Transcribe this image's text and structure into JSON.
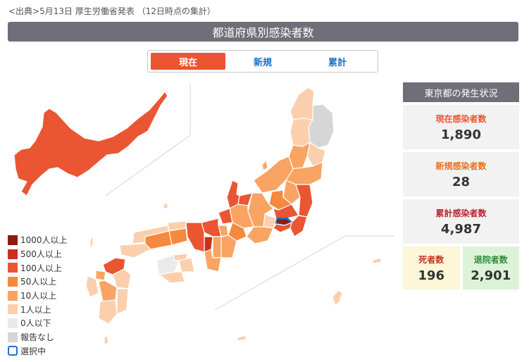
{
  "source_note": "<出典>5月13日 厚生労働省発表 （12日時点の集計）",
  "title": "都道府県別感染者数",
  "tabs": [
    {
      "label": "現在",
      "active": true
    },
    {
      "label": "新規",
      "active": false
    },
    {
      "label": "累計",
      "active": false
    }
  ],
  "legend": [
    {
      "label": "1000人以上",
      "color": "#8e1b10"
    },
    {
      "label": "500人以上",
      "color": "#c8321d"
    },
    {
      "label": "100人以上",
      "color": "#ea5532"
    },
    {
      "label": "50人以上",
      "color": "#f5893e"
    },
    {
      "label": "10人以上",
      "color": "#f9a462"
    },
    {
      "label": "1人以上",
      "color": "#fbcfae"
    },
    {
      "label": "0人以下",
      "color": "#eaeaea"
    },
    {
      "label": "報告なし",
      "color": "#d6d6d6"
    },
    {
      "label": "選択中",
      "color": "#1f6fcc"
    }
  ],
  "panel": {
    "header": "東京都の発生状況",
    "current_label": "現在感染者数",
    "current_value": "1,890",
    "new_label": "新規感染者数",
    "new_value": "28",
    "total_label": "累計感染者数",
    "total_value": "4,987",
    "deaths_label": "死者数",
    "deaths_value": "196",
    "recovered_label": "退院者数",
    "recovered_value": "2,901"
  },
  "colors": {
    "current": "#ea5532",
    "new": "#e8711c",
    "total": "#b8242f",
    "deaths_bg": "#fdf6d8",
    "deaths_text": "#c8321d",
    "recovered_bg": "#dcf3d8",
    "recovered_text": "#2e8b3a"
  }
}
